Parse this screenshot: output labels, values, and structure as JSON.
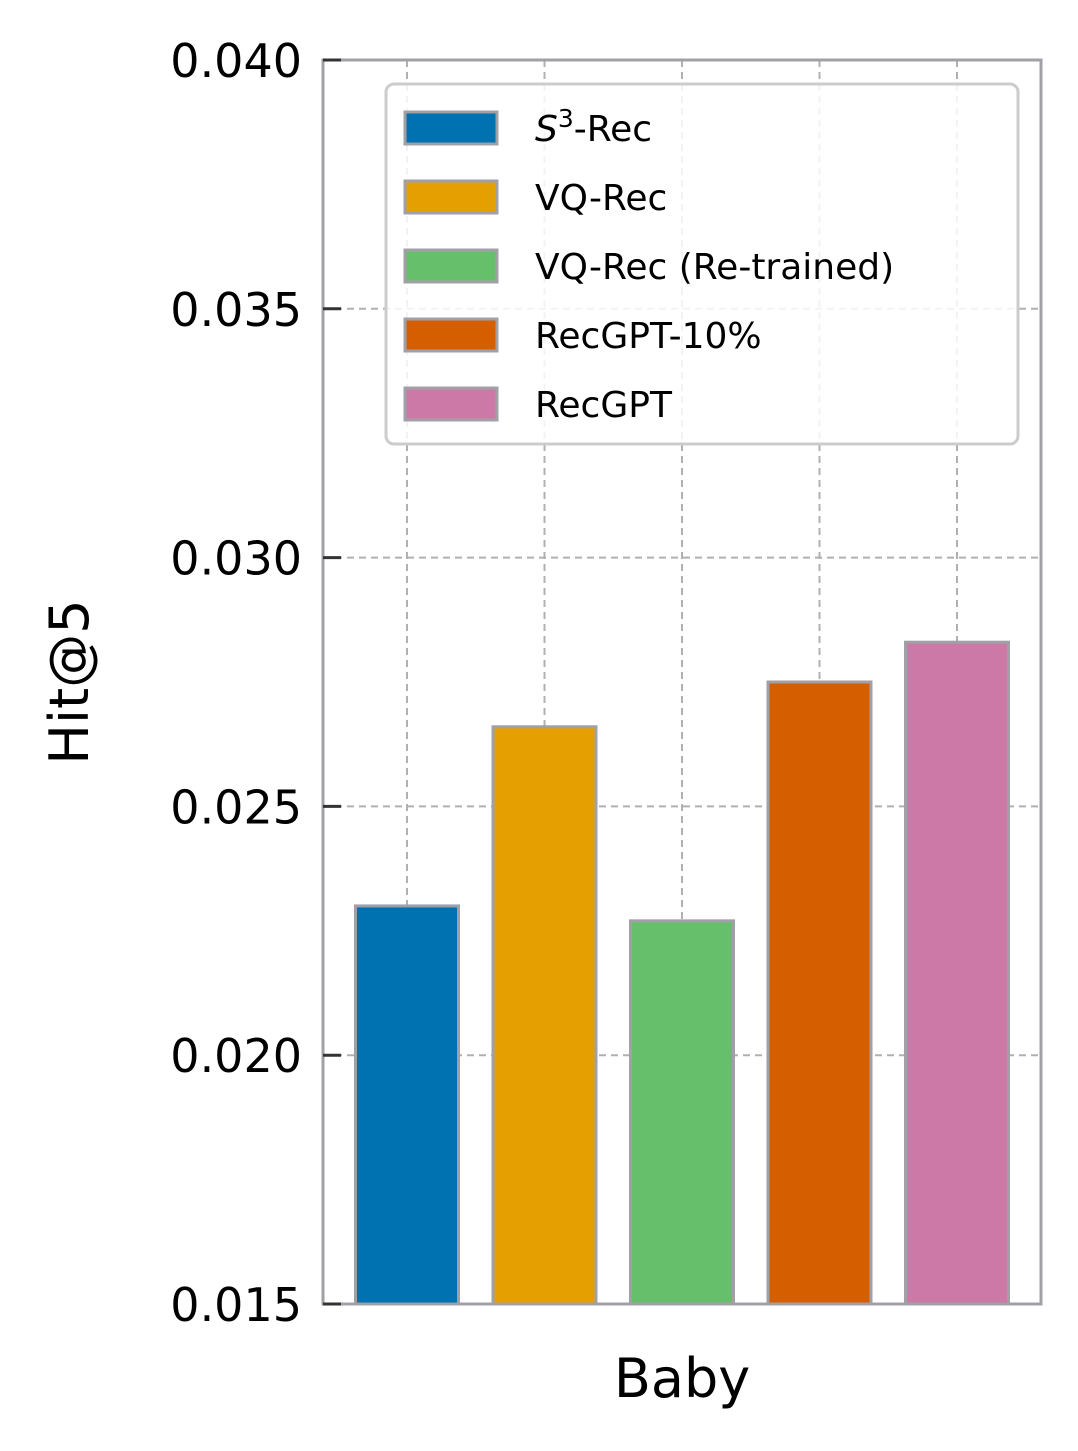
{
  "chart_data": {
    "type": "bar",
    "title": "",
    "categories": [
      "Baby"
    ],
    "xlabel": "Baby",
    "ylabel": "Hit@5",
    "ylim": [
      0.015,
      0.04
    ],
    "yticks": [
      "0.015",
      "0.020",
      "0.025",
      "0.030",
      "0.035",
      "0.040"
    ],
    "grid": true,
    "legend_position": "top-right",
    "series": [
      {
        "name": "S3-Rec",
        "label_base": "S",
        "label_sup": "3",
        "label_rest": "-Rec",
        "values": [
          0.023
        ],
        "color": "#0072b2"
      },
      {
        "name": "VQ-Rec",
        "values": [
          0.0266
        ],
        "color": "#e69f00"
      },
      {
        "name": "VQ-Rec (Re-trained)",
        "values": [
          0.0227
        ],
        "color": "#66bf6a"
      },
      {
        "name": "RecGPT-10%",
        "values": [
          0.0275
        ],
        "color": "#d55e00"
      },
      {
        "name": "RecGPT",
        "values": [
          0.0283
        ],
        "color": "#cc79a7"
      }
    ]
  }
}
